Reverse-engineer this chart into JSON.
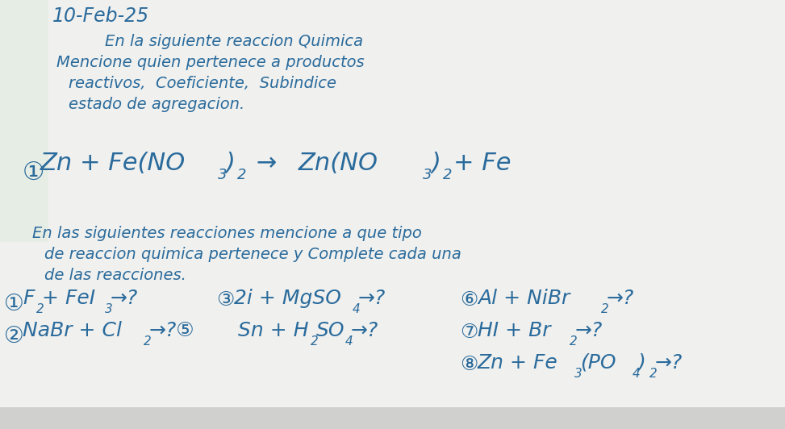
{
  "bg_color": "#f0f0ee",
  "text_color": "#2a6b9c",
  "title": "10-Feb-25",
  "section1": [
    "En la siguiente reaccion Quimica",
    "Mencione quien pertenece a productos",
    "reactivos,  Coeficiente,  Subindice",
    "estado de agregacion."
  ],
  "section2": [
    "En las siguientes reacciones mencione a que tipo",
    "de reaccion quimica pertenece y Complete cada una",
    "de las reacciones."
  ]
}
